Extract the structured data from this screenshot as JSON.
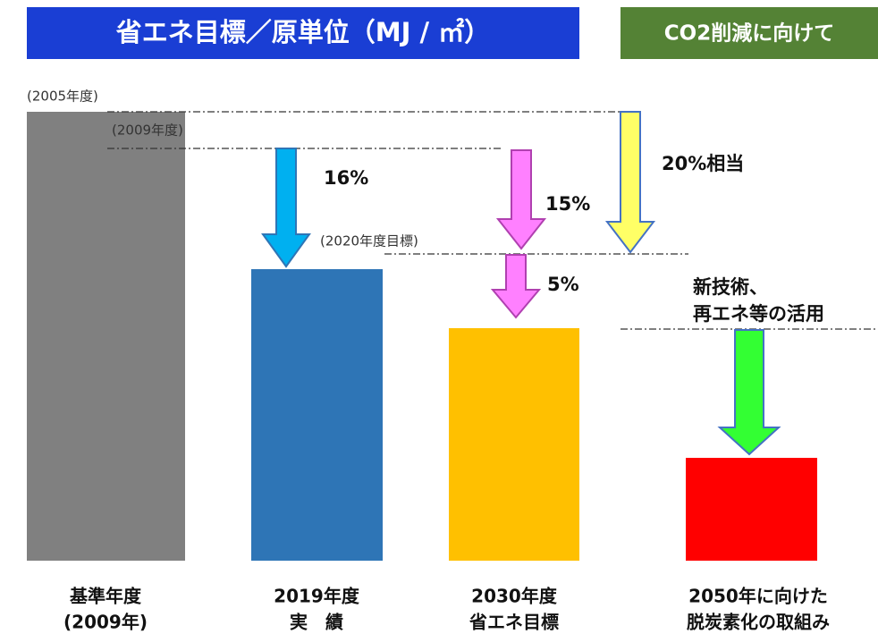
{
  "header": {
    "title": "省エネ目標／原単位（MJ / ㎡）",
    "side_title": "CO2削減に向けて"
  },
  "labels": {
    "base_year": "(2005年度)",
    "ref_year": "(2009年度)",
    "target_2020": "(2020年度目標)"
  },
  "reductions": {
    "r2019": "16%",
    "r2030a": "15%",
    "r2030b": "5%",
    "r2050": "20%相当"
  },
  "note": [
    "新技術、",
    "再エネ等の活用"
  ],
  "columns": [
    [
      "基準年度",
      "(2009年)"
    ],
    [
      "2019年度",
      "実　績"
    ],
    [
      "2030年度",
      "省エネ目標"
    ],
    [
      "2050年に向けた",
      "脱炭素化の取組み"
    ]
  ]
}
